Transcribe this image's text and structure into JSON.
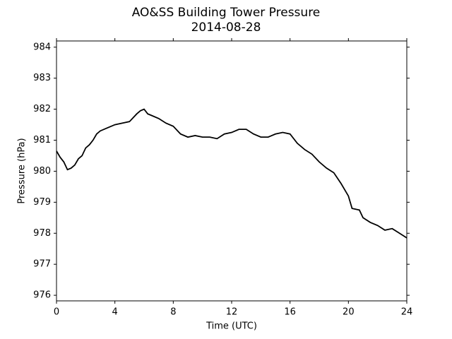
{
  "chart_data": {
    "type": "line",
    "title": "AO&SS Building Tower Pressure",
    "subtitle": "2014-08-28",
    "x_label": "Time (UTC)",
    "y_label": "Pressure (hPa)",
    "x": [
      0,
      0.25,
      0.5,
      0.75,
      1.0,
      1.25,
      1.5,
      1.75,
      2.0,
      2.25,
      2.5,
      2.75,
      3.0,
      3.5,
      4.0,
      4.5,
      5.0,
      5.5,
      5.75,
      6.0,
      6.25,
      6.5,
      7.0,
      7.5,
      8.0,
      8.5,
      9.0,
      9.5,
      10.0,
      10.5,
      11.0,
      11.5,
      12.0,
      12.5,
      13.0,
      13.5,
      14.0,
      14.5,
      15.0,
      15.5,
      16.0,
      16.5,
      17.0,
      17.5,
      18.0,
      18.5,
      19.0,
      19.5,
      20.0,
      20.25,
      20.75,
      21.0,
      21.5,
      22.0,
      22.5,
      23.0,
      23.5,
      24.0
    ],
    "series": [
      {
        "name": "Pressure",
        "color": "#000000",
        "values": [
          980.65,
          980.45,
          980.3,
          980.05,
          980.1,
          980.2,
          980.4,
          980.5,
          980.75,
          980.85,
          981.0,
          981.2,
          981.3,
          981.4,
          981.5,
          981.55,
          981.6,
          981.85,
          981.95,
          982.0,
          981.85,
          981.8,
          981.7,
          981.55,
          981.45,
          981.2,
          981.1,
          981.15,
          981.1,
          981.1,
          981.05,
          981.2,
          981.25,
          981.35,
          981.35,
          981.2,
          981.1,
          981.1,
          981.2,
          981.25,
          981.2,
          980.9,
          980.7,
          980.55,
          980.3,
          980.1,
          979.95,
          979.6,
          979.2,
          978.8,
          978.75,
          978.5,
          978.35,
          978.25,
          978.1,
          978.15,
          978.0,
          977.85
        ]
      }
    ],
    "xlim": [
      0,
      24
    ],
    "xticks": [
      0,
      4,
      8,
      12,
      16,
      20,
      24
    ],
    "ylim": [
      975.82,
      984.2
    ],
    "yticks": [
      976,
      977,
      978,
      979,
      980,
      981,
      982,
      983,
      984
    ],
    "grid": false
  }
}
